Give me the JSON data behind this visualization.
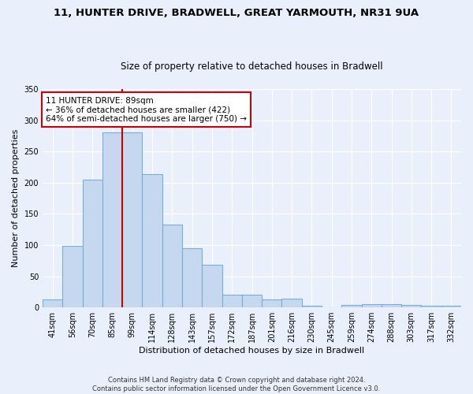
{
  "title1": "11, HUNTER DRIVE, BRADWELL, GREAT YARMOUTH, NR31 9UA",
  "title2": "Size of property relative to detached houses in Bradwell",
  "xlabel": "Distribution of detached houses by size in Bradwell",
  "ylabel": "Number of detached properties",
  "categories": [
    "41sqm",
    "56sqm",
    "70sqm",
    "85sqm",
    "99sqm",
    "114sqm",
    "128sqm",
    "143sqm",
    "157sqm",
    "172sqm",
    "187sqm",
    "201sqm",
    "216sqm",
    "230sqm",
    "245sqm",
    "259sqm",
    "274sqm",
    "288sqm",
    "303sqm",
    "317sqm",
    "332sqm"
  ],
  "values": [
    13,
    99,
    205,
    280,
    280,
    214,
    133,
    95,
    68,
    21,
    21,
    13,
    14,
    3,
    0,
    4,
    5,
    5,
    4,
    3,
    3
  ],
  "bar_color": "#c5d8f0",
  "bar_edge_color": "#7aadd4",
  "vline_x": 3.5,
  "vline_color": "#cc0000",
  "annotation_line1": "11 HUNTER DRIVE: 89sqm",
  "annotation_line2": "← 36% of detached houses are smaller (422)",
  "annotation_line3": "64% of semi-detached houses are larger (750) →",
  "bg_color": "#eaf0fb",
  "grid_color": "#ffffff",
  "footnote": "Contains HM Land Registry data © Crown copyright and database right 2024.\nContains public sector information licensed under the Open Government Licence v3.0.",
  "ylim": [
    0,
    350
  ],
  "title1_fontsize": 9.5,
  "title2_fontsize": 8.5,
  "ylabel_fontsize": 8,
  "xlabel_fontsize": 8,
  "tick_fontsize": 7,
  "annot_fontsize": 7.5,
  "footnote_fontsize": 6
}
